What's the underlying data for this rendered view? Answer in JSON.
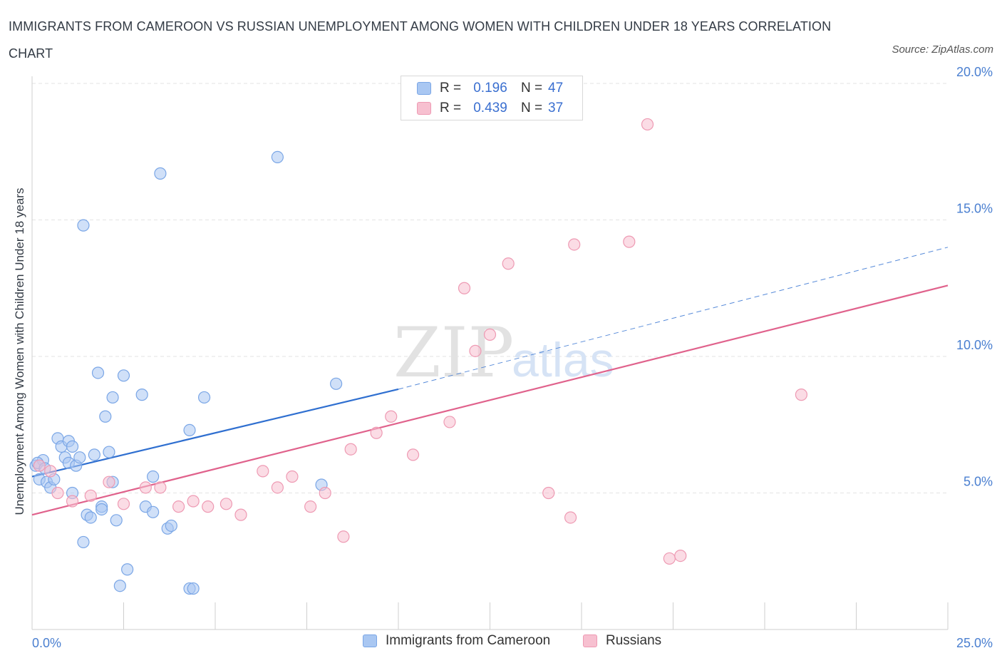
{
  "title": "IMMIGRANTS FROM CAMEROON VS RUSSIAN UNEMPLOYMENT AMONG WOMEN WITH CHILDREN UNDER 18 YEARS CORRELATION CHART",
  "source": "Source: ZipAtlas.com",
  "watermark": {
    "zip": "ZIP",
    "atlas": "atlas"
  },
  "legend_top": [
    {
      "r_label": "R =",
      "r_value": "0.196",
      "n_label": "N =",
      "n_value": "47",
      "color": "#a9c7f2",
      "border": "#7aa6e6"
    },
    {
      "r_label": "R =",
      "r_value": "0.439",
      "n_label": "N =",
      "n_value": "37",
      "color": "#f7c0d0",
      "border": "#ee9ab3"
    }
  ],
  "legend_bottom": [
    {
      "label": "Immigrants from Cameroon",
      "color": "#a9c7f2",
      "border": "#7aa6e6"
    },
    {
      "label": "Russians",
      "color": "#f7c0d0",
      "border": "#ee9ab3"
    }
  ],
  "chart_data": {
    "type": "scatter",
    "ylabel": "Unemployment Among Women with Children Under 18 years",
    "xlabel": "",
    "xlim": [
      0,
      25
    ],
    "ylim": [
      0,
      20
    ],
    "x_tick_labels": [
      {
        "value": 0,
        "label": "0.0%"
      },
      {
        "value": 25,
        "label": "25.0%"
      }
    ],
    "y_tick_labels": [
      {
        "value": 5,
        "label": "5.0%"
      },
      {
        "value": 10,
        "label": "10.0%"
      },
      {
        "value": 15,
        "label": "15.0%"
      },
      {
        "value": 20,
        "label": "20.0%"
      }
    ],
    "grid": "horizontal dashed",
    "legend_position": "top-center",
    "series": [
      {
        "name": "Immigrants from Cameroon",
        "color": "#7aa6e6",
        "fill": "#a9c7f2",
        "trend": {
          "solid_from": [
            0,
            5.6
          ],
          "solid_to": [
            10,
            8.8
          ],
          "dashed_to": [
            25,
            14.0
          ],
          "color": "#2f6fd0"
        },
        "points": [
          [
            0.1,
            6.0
          ],
          [
            0.2,
            5.5
          ],
          [
            0.3,
            6.2
          ],
          [
            0.4,
            5.4
          ],
          [
            0.5,
            5.2
          ],
          [
            0.6,
            5.5
          ],
          [
            0.7,
            7.0
          ],
          [
            0.8,
            6.7
          ],
          [
            0.9,
            6.3
          ],
          [
            1.0,
            6.9
          ],
          [
            1.0,
            6.1
          ],
          [
            1.1,
            6.7
          ],
          [
            1.1,
            5.0
          ],
          [
            1.2,
            6.0
          ],
          [
            1.3,
            6.3
          ],
          [
            1.4,
            14.8
          ],
          [
            1.4,
            3.2
          ],
          [
            1.5,
            4.2
          ],
          [
            1.6,
            4.1
          ],
          [
            1.7,
            6.4
          ],
          [
            1.8,
            9.4
          ],
          [
            1.9,
            4.5
          ],
          [
            1.9,
            4.4
          ],
          [
            2.0,
            7.8
          ],
          [
            2.1,
            6.5
          ],
          [
            2.2,
            5.4
          ],
          [
            2.2,
            8.5
          ],
          [
            2.3,
            4.0
          ],
          [
            2.4,
            1.6
          ],
          [
            2.5,
            9.3
          ],
          [
            2.6,
            2.2
          ],
          [
            3.0,
            8.6
          ],
          [
            3.1,
            4.5
          ],
          [
            3.3,
            5.6
          ],
          [
            3.3,
            4.3
          ],
          [
            3.5,
            16.7
          ],
          [
            3.7,
            3.7
          ],
          [
            3.8,
            3.8
          ],
          [
            4.3,
            7.3
          ],
          [
            4.3,
            1.5
          ],
          [
            4.4,
            1.5
          ],
          [
            4.7,
            8.5
          ],
          [
            6.7,
            17.3
          ],
          [
            7.9,
            5.3
          ],
          [
            8.3,
            9.0
          ],
          [
            0.15,
            6.1
          ],
          [
            0.35,
            5.9
          ]
        ]
      },
      {
        "name": "Russians",
        "color": "#ee9ab3",
        "fill": "#f7c0d0",
        "trend": {
          "solid_from": [
            0,
            4.2
          ],
          "solid_to": [
            25,
            12.6
          ],
          "color": "#e0628c"
        },
        "points": [
          [
            0.2,
            6.0
          ],
          [
            0.7,
            5.0
          ],
          [
            1.1,
            4.7
          ],
          [
            1.6,
            4.9
          ],
          [
            2.1,
            5.4
          ],
          [
            2.5,
            4.6
          ],
          [
            3.1,
            5.2
          ],
          [
            3.5,
            5.2
          ],
          [
            4.0,
            4.5
          ],
          [
            4.4,
            4.7
          ],
          [
            4.8,
            4.5
          ],
          [
            5.3,
            4.6
          ],
          [
            5.7,
            4.2
          ],
          [
            6.3,
            5.8
          ],
          [
            6.7,
            5.2
          ],
          [
            7.1,
            5.6
          ],
          [
            7.6,
            4.5
          ],
          [
            8.0,
            5.0
          ],
          [
            8.5,
            3.4
          ],
          [
            8.7,
            6.6
          ],
          [
            9.4,
            7.2
          ],
          [
            9.8,
            7.8
          ],
          [
            10.4,
            6.4
          ],
          [
            11.4,
            7.6
          ],
          [
            11.8,
            12.5
          ],
          [
            12.1,
            10.2
          ],
          [
            12.5,
            10.8
          ],
          [
            13.0,
            13.4
          ],
          [
            14.1,
            5.0
          ],
          [
            14.7,
            4.1
          ],
          [
            14.8,
            14.1
          ],
          [
            16.3,
            14.2
          ],
          [
            16.8,
            18.5
          ],
          [
            17.4,
            2.6
          ],
          [
            17.7,
            2.7
          ],
          [
            21.0,
            8.6
          ],
          [
            0.5,
            5.8
          ]
        ]
      }
    ]
  }
}
